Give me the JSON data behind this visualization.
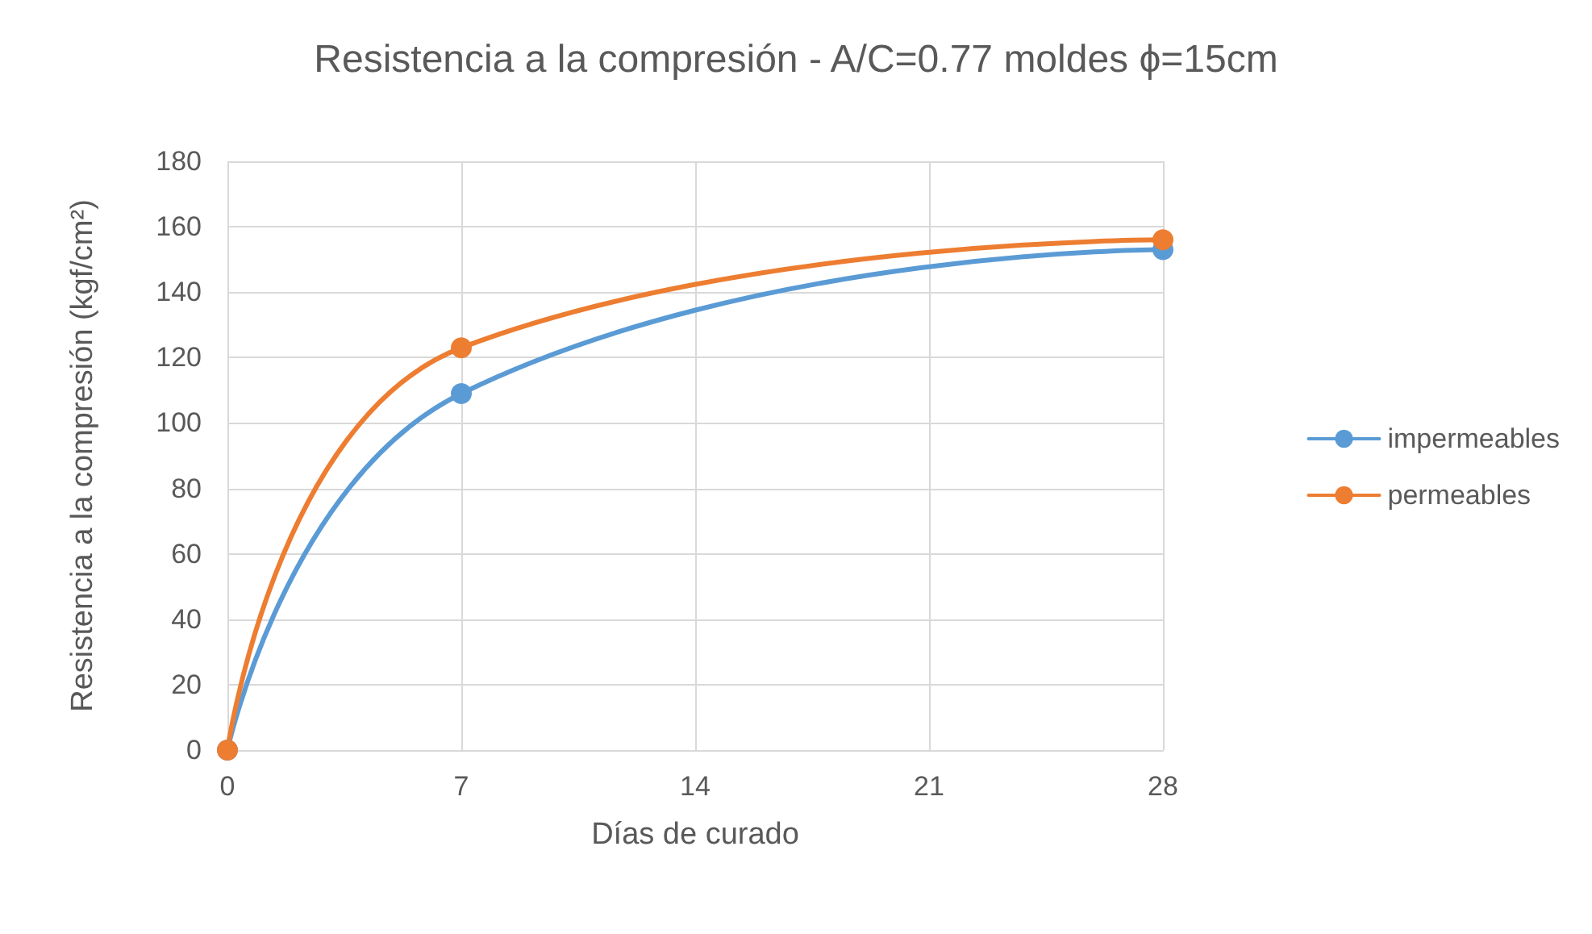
{
  "chart_data": {
    "type": "line",
    "title": "Resistencia a la compresión - A/C=0.77 moldes ϕ=15cm",
    "xlabel": "Días de curado",
    "ylabel": "Resistencia a la compresión (kgf/cm²)",
    "x": [
      0,
      7,
      28
    ],
    "series": [
      {
        "name": "impermeables",
        "color": "#5b9bd5",
        "values": [
          0,
          109,
          153
        ]
      },
      {
        "name": "permeables",
        "color": "#ed7d31",
        "values": [
          0,
          123,
          156
        ]
      }
    ],
    "xlim": [
      0,
      28
    ],
    "xticks": [
      0,
      7,
      14,
      21,
      28
    ],
    "ylim": [
      0,
      180
    ],
    "yticks": [
      0,
      20,
      40,
      60,
      80,
      100,
      120,
      140,
      160,
      180
    ],
    "grid": true,
    "legend": "right",
    "marker": "circle",
    "line_style": "solid"
  }
}
